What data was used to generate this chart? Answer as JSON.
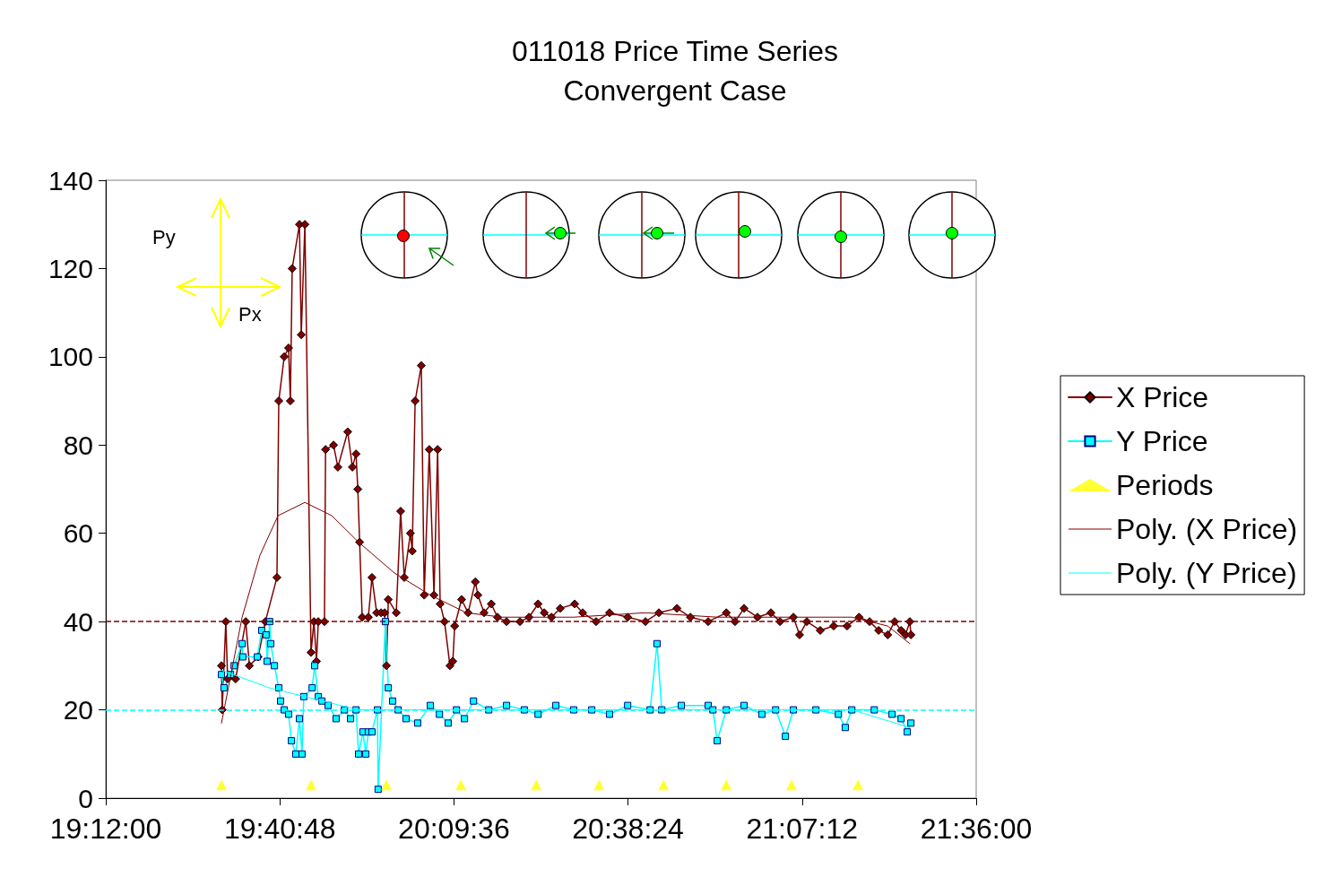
{
  "chart_data": {
    "type": "line",
    "title": "011018 Price Time Series",
    "subtitle": "Convergent Case",
    "annotations": [
      "Py",
      "Px"
    ],
    "xlim": [
      19.2,
      21.6
    ],
    "xticks": [
      {
        "value": 19.2,
        "label": "19:12:00"
      },
      {
        "value": 19.68,
        "label": "19:40:48"
      },
      {
        "value": 20.16,
        "label": "20:09:36"
      },
      {
        "value": 20.64,
        "label": "20:38:24"
      },
      {
        "value": 21.12,
        "label": "21:07:12"
      },
      {
        "value": 21.6,
        "label": "21:36:00"
      }
    ],
    "ylim": [
      0,
      140
    ],
    "yticks": [
      0,
      20,
      40,
      60,
      80,
      100,
      120,
      140
    ],
    "grid": false,
    "legend": "right",
    "ref_lines": [
      {
        "axis": "y",
        "value": 40,
        "label": null,
        "color": "#800000",
        "line_style": "dashed"
      },
      {
        "axis": "y",
        "value": 20,
        "label": null,
        "color": "#00ffff",
        "line_style": "dashed"
      }
    ],
    "series": [
      {
        "name": "X Price",
        "type": "line",
        "color": "#800000",
        "marker": "diamond",
        "x": [
          19.519,
          19.521,
          19.531,
          19.536,
          19.558,
          19.586,
          19.596,
          19.62,
          19.64,
          19.672,
          19.677,
          19.692,
          19.704,
          19.709,
          19.714,
          19.734,
          19.739,
          19.749,
          19.766,
          19.774,
          19.781,
          19.786,
          19.803,
          19.806,
          19.828,
          19.84,
          19.867,
          19.88,
          19.89,
          19.895,
          19.9,
          19.907,
          19.924,
          19.934,
          19.947,
          19.959,
          19.969,
          19.974,
          19.979,
          20.001,
          20.013,
          20.023,
          20.04,
          20.045,
          20.053,
          20.07,
          20.078,
          20.092,
          20.105,
          20.115,
          20.122,
          20.134,
          20.149,
          20.157,
          20.162,
          20.181,
          20.199,
          20.219,
          20.226,
          20.243,
          20.263,
          20.28,
          20.305,
          20.342,
          20.367,
          20.392,
          20.409,
          20.429,
          20.453,
          20.493,
          20.515,
          20.552,
          20.589,
          20.639,
          20.688,
          20.725,
          20.775,
          20.812,
          20.861,
          20.911,
          20.935,
          20.96,
          20.997,
          21.034,
          21.059,
          21.096,
          21.113,
          21.133,
          21.17,
          21.207,
          21.244,
          21.277,
          21.306,
          21.331,
          21.356,
          21.375,
          21.393,
          21.405,
          21.417,
          21.42
        ],
        "values": [
          30,
          20,
          40,
          27,
          27,
          40,
          30,
          32,
          40,
          50,
          90,
          100,
          102,
          90,
          120,
          130,
          105,
          130,
          33,
          40,
          31,
          40,
          40,
          79,
          80,
          75,
          83,
          75,
          78,
          70,
          58,
          41,
          41,
          50,
          42,
          42,
          42,
          30,
          45,
          42,
          65,
          50,
          60,
          56,
          90,
          98,
          46,
          79,
          46,
          79,
          44,
          40,
          30,
          31,
          39,
          45,
          42,
          49,
          46,
          42,
          44,
          41,
          40,
          40,
          41,
          44,
          42,
          41,
          43,
          44,
          42,
          40,
          42,
          41,
          40,
          42,
          43,
          41,
          40,
          42,
          40,
          43,
          41,
          42,
          40,
          41,
          37,
          40,
          38,
          39,
          39,
          41,
          40,
          38,
          37,
          40,
          38,
          37,
          40,
          37
        ]
      },
      {
        "name": "Y Price",
        "type": "line",
        "color": "#00ffff",
        "marker": "square",
        "x": [
          19.519,
          19.526,
          19.544,
          19.554,
          19.576,
          19.578,
          19.618,
          19.63,
          19.642,
          19.645,
          19.652,
          19.655,
          19.665,
          19.677,
          19.682,
          19.692,
          19.704,
          19.712,
          19.724,
          19.734,
          19.741,
          19.746,
          19.769,
          19.776,
          19.786,
          19.796,
          19.813,
          19.835,
          19.858,
          19.875,
          19.89,
          19.897,
          19.909,
          19.917,
          19.924,
          19.934,
          19.949,
          19.951,
          19.971,
          19.979,
          19.991,
          20.006,
          20.028,
          20.06,
          20.095,
          20.12,
          20.144,
          20.167,
          20.189,
          20.214,
          20.256,
          20.305,
          20.354,
          20.392,
          20.441,
          20.49,
          20.54,
          20.589,
          20.639,
          20.701,
          20.72,
          20.733,
          20.787,
          20.861,
          20.874,
          20.886,
          20.911,
          20.96,
          21.009,
          21.047,
          21.074,
          21.096,
          21.158,
          21.22,
          21.239,
          21.257,
          21.319,
          21.368,
          21.393,
          21.41,
          21.42
        ],
        "values": [
          28,
          25,
          28,
          30,
          35,
          32,
          32,
          38,
          37,
          31,
          40,
          35,
          30,
          25,
          22,
          20,
          19,
          13,
          10,
          18,
          10,
          23,
          25,
          30,
          23,
          22,
          21,
          18,
          20,
          18,
          20,
          10,
          15,
          10,
          15,
          15,
          20,
          2,
          40,
          25,
          22,
          20,
          18,
          17,
          21,
          19,
          17,
          20,
          18,
          22,
          20,
          21,
          20,
          19,
          21,
          20,
          20,
          19,
          21,
          20,
          35,
          20,
          21,
          21,
          20,
          13,
          20,
          21,
          19,
          20,
          14,
          20,
          20,
          19,
          16,
          20,
          20,
          19,
          18,
          15,
          17
        ]
      },
      {
        "name": "Periods",
        "type": "scatter",
        "color": "#ffff00",
        "marker": "triangle",
        "x": [
          19.519,
          19.766,
          19.974,
          20.179,
          20.387,
          20.56,
          20.738,
          20.911,
          21.091,
          21.274
        ],
        "values": [
          3,
          3,
          3,
          3,
          3,
          3,
          3,
          3,
          3,
          3
        ]
      },
      {
        "name": "Poly. (X Price)",
        "type": "line",
        "color": "#800000",
        "marker": "none",
        "x": [
          19.519,
          19.576,
          19.625,
          19.675,
          19.749,
          19.823,
          19.897,
          19.996,
          20.095,
          20.194,
          20.293,
          20.49,
          20.688,
          20.886,
          21.084,
          21.257,
          21.356,
          21.417
        ],
        "values": [
          17,
          41,
          55,
          64,
          67,
          64,
          58,
          51,
          46,
          42,
          41,
          41,
          42,
          41,
          41,
          41,
          39,
          35
        ]
      },
      {
        "name": "Poly. (Y Price)",
        "type": "line",
        "color": "#00ffff",
        "marker": "none",
        "x": [
          19.519,
          19.65,
          19.749,
          19.897,
          20.021,
          20.268,
          20.762,
          21.257,
          21.417
        ],
        "values": [
          29,
          25,
          23,
          20,
          20,
          20,
          20,
          20,
          16
        ]
      }
    ]
  }
}
